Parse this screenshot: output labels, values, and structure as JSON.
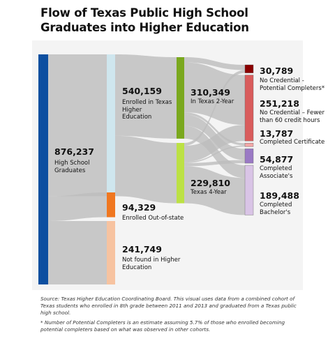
{
  "title": "Flow of Texas Public High School Graduates into Higher Education",
  "chart_data": {
    "type": "sankey",
    "title": "Flow of Texas Public High School Graduates into Higher Education",
    "nodes": [
      {
        "id": "hs",
        "value": 876237,
        "value_label": "876,237",
        "label": "High School Graduates",
        "color": "#0d4fa0"
      },
      {
        "id": "enrolled_tx",
        "value": 540159,
        "value_label": "540,159",
        "label": "Enrolled in Texas Higher Education",
        "color": "#cfe6ee"
      },
      {
        "id": "out_of_state",
        "value": 94329,
        "value_label": "94,329",
        "label": "Enrolled Out-of-state",
        "color": "#f07720"
      },
      {
        "id": "not_found",
        "value": 241749,
        "value_label": "241,749",
        "label": "Not found in Higher Education",
        "color": "#f7c3a0"
      },
      {
        "id": "two_year",
        "value": 310349,
        "value_label": "310,349",
        "label": "In Texas 2-Year",
        "color": "#7aa81e"
      },
      {
        "id": "four_year",
        "value": 229810,
        "value_label": "229,810",
        "label": "Texas 4-Year",
        "color": "#bce144"
      },
      {
        "id": "potential",
        "value": 30789,
        "value_label": "30,789",
        "label": "No Credential - Potential Completers*",
        "color": "#8a0000"
      },
      {
        "id": "no_cred",
        "value": 251218,
        "value_label": "251,218",
        "label": "No Credential – Fewer than 60 credit hours",
        "color": "#d95c5c"
      },
      {
        "id": "certificate",
        "value": 13787,
        "value_label": "13,787",
        "label": "Completed Certificate",
        "color": "#f2a7a7"
      },
      {
        "id": "associates",
        "value": 54877,
        "value_label": "54,877",
        "label": "Completed Associate's",
        "color": "#9a79c4"
      },
      {
        "id": "bachelors",
        "value": 189488,
        "value_label": "189,488",
        "label": "Completed Bachelor's",
        "color": "#d9c4e6"
      }
    ],
    "links": [
      {
        "source": "hs",
        "target": "enrolled_tx",
        "value": 540159
      },
      {
        "source": "hs",
        "target": "out_of_state",
        "value": 94329
      },
      {
        "source": "hs",
        "target": "not_found",
        "value": 241749
      },
      {
        "source": "enrolled_tx",
        "target": "two_year",
        "value": 310349
      },
      {
        "source": "enrolled_tx",
        "target": "four_year",
        "value": 229810
      },
      {
        "source": "two_year",
        "target": "potential",
        "value": 20000
      },
      {
        "source": "two_year",
        "target": "no_cred",
        "value": 190000
      },
      {
        "source": "two_year",
        "target": "certificate",
        "value": 9000
      },
      {
        "source": "two_year",
        "target": "associates",
        "value": 43000
      },
      {
        "source": "two_year",
        "target": "bachelors",
        "value": 48349
      },
      {
        "source": "four_year",
        "target": "potential",
        "value": 10789
      },
      {
        "source": "four_year",
        "target": "no_cred",
        "value": 61218
      },
      {
        "source": "four_year",
        "target": "certificate",
        "value": 4787
      },
      {
        "source": "four_year",
        "target": "associates",
        "value": 11877
      },
      {
        "source": "four_year",
        "target": "bachelors",
        "value": 141139
      }
    ]
  },
  "footnotes": {
    "source": "Source: Texas Higher Education Coordinating Board.  This visual uses data from a combined cohort of Texas students who enrolled in 8th grade between 2011 and 2013 and graduated from a Texas public high school.",
    "note": "* Number of Potential Completers is an estimate assuming 5.7% of those who enrolled becoming potential completers based on what was observed in other cohorts."
  }
}
